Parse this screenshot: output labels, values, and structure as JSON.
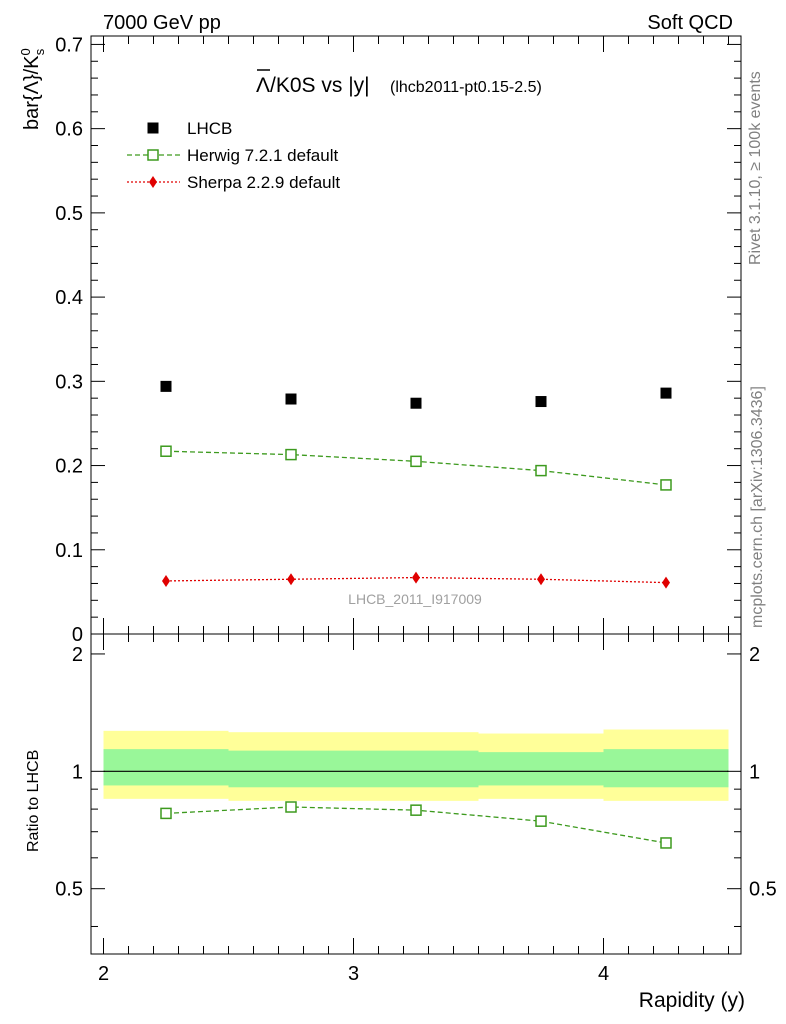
{
  "header": {
    "energy": "7000 GeV pp",
    "group": "Soft QCD"
  },
  "side_labels": {
    "rivet": "Rivet 3.1.10, ≥ 100k events",
    "mcplots": "mcplots.cern.ch [arXiv:1306.3436]"
  },
  "colors": {
    "data": "#000000",
    "herwig": "#3d9a1e",
    "sherpa": "#e00000",
    "band_inner": "#99f799",
    "band_outer": "#ffff99"
  },
  "chart_data": [
    {
      "type": "scatter",
      "title_main": "Λ/K0S vs |y|",
      "title_overline": "Λ",
      "title_rest": "/K0S vs |y|",
      "title_tag": "(lhcb2011-pt0.15-2.5)",
      "ylabel": "bar{Λ}/K",
      "ylabel_sup": "0",
      "ylabel_sub": "s",
      "xlim": [
        1.95,
        4.55
      ],
      "ylim": [
        0,
        0.71
      ],
      "yticks": [
        0,
        0.1,
        0.2,
        0.3,
        0.4,
        0.5,
        0.6,
        0.7
      ],
      "ytick_labels": [
        "0",
        "0.1",
        "0.2",
        "0.3",
        "0.4",
        "0.5",
        "0.6",
        "0.7"
      ],
      "watermark": "LHCB_2011_I917009",
      "legend_position": "top-left",
      "series": [
        {
          "name": "LHCB",
          "style": "data",
          "x": [
            2.25,
            2.75,
            3.25,
            3.75,
            4.25
          ],
          "y": [
            0.294,
            0.279,
            0.274,
            0.276,
            0.286
          ]
        },
        {
          "name": "Herwig 7.2.1 default",
          "style": "herwig",
          "x": [
            2.25,
            2.75,
            3.25,
            3.75,
            4.25
          ],
          "y": [
            0.217,
            0.213,
            0.205,
            0.194,
            0.177
          ]
        },
        {
          "name": "Sherpa 2.2.9 default",
          "style": "sherpa",
          "x": [
            2.25,
            2.75,
            3.25,
            3.75,
            4.25
          ],
          "y": [
            0.063,
            0.065,
            0.067,
            0.065,
            0.061
          ]
        }
      ]
    },
    {
      "type": "line",
      "ylabel": "Ratio to LHCB",
      "xlabel": "Rapidity (y)",
      "xlim": [
        1.95,
        4.55
      ],
      "ylim": [
        0.34,
        2.25
      ],
      "yticks": [
        0.5,
        1,
        2
      ],
      "ytick_labels": [
        "0.5",
        "1",
        "2"
      ],
      "xticks": [
        2,
        3,
        4
      ],
      "xtick_labels": [
        "2",
        "3",
        "4"
      ],
      "reference": 1,
      "bands": [
        {
          "x_from": 2.0,
          "x_to": 2.5,
          "inner": [
            0.92,
            1.14
          ],
          "outer": [
            0.85,
            1.27
          ]
        },
        {
          "x_from": 2.5,
          "x_to": 3.0,
          "inner": [
            0.91,
            1.13
          ],
          "outer": [
            0.84,
            1.26
          ]
        },
        {
          "x_from": 3.0,
          "x_to": 3.5,
          "inner": [
            0.91,
            1.13
          ],
          "outer": [
            0.84,
            1.26
          ]
        },
        {
          "x_from": 3.5,
          "x_to": 4.0,
          "inner": [
            0.92,
            1.12
          ],
          "outer": [
            0.85,
            1.25
          ]
        },
        {
          "x_from": 4.0,
          "x_to": 4.5,
          "inner": [
            0.91,
            1.14
          ],
          "outer": [
            0.84,
            1.28
          ]
        }
      ],
      "series": [
        {
          "name": "Herwig 7.2.1 default",
          "style": "herwig",
          "x": [
            2.25,
            2.75,
            3.25,
            3.75,
            4.25
          ],
          "y": [
            0.78,
            0.81,
            0.795,
            0.745,
            0.655
          ]
        }
      ]
    }
  ]
}
